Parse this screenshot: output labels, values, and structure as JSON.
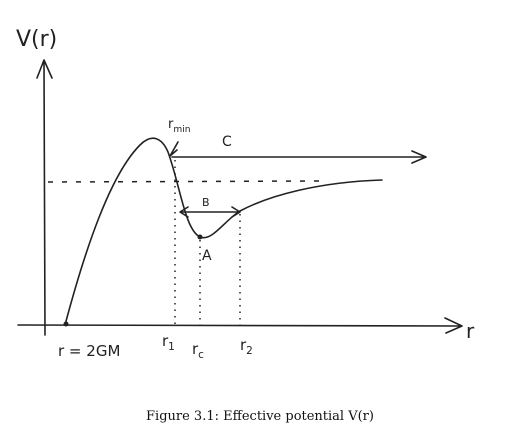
{
  "axes": {
    "y_label": "V(r)",
    "x_label": "r"
  },
  "labels": {
    "r_min": {
      "base": "r",
      "sub": "min"
    },
    "C": "C",
    "B": "B",
    "A": "A"
  },
  "x_marks": {
    "horizon": "r = 2GM",
    "r1": {
      "base": "r",
      "sub": "1"
    },
    "rc": {
      "base": "r",
      "sub": "c"
    },
    "r2": {
      "base": "r",
      "sub": "2"
    }
  },
  "caption": "Figure 3.1: Effective potential V(r)"
}
